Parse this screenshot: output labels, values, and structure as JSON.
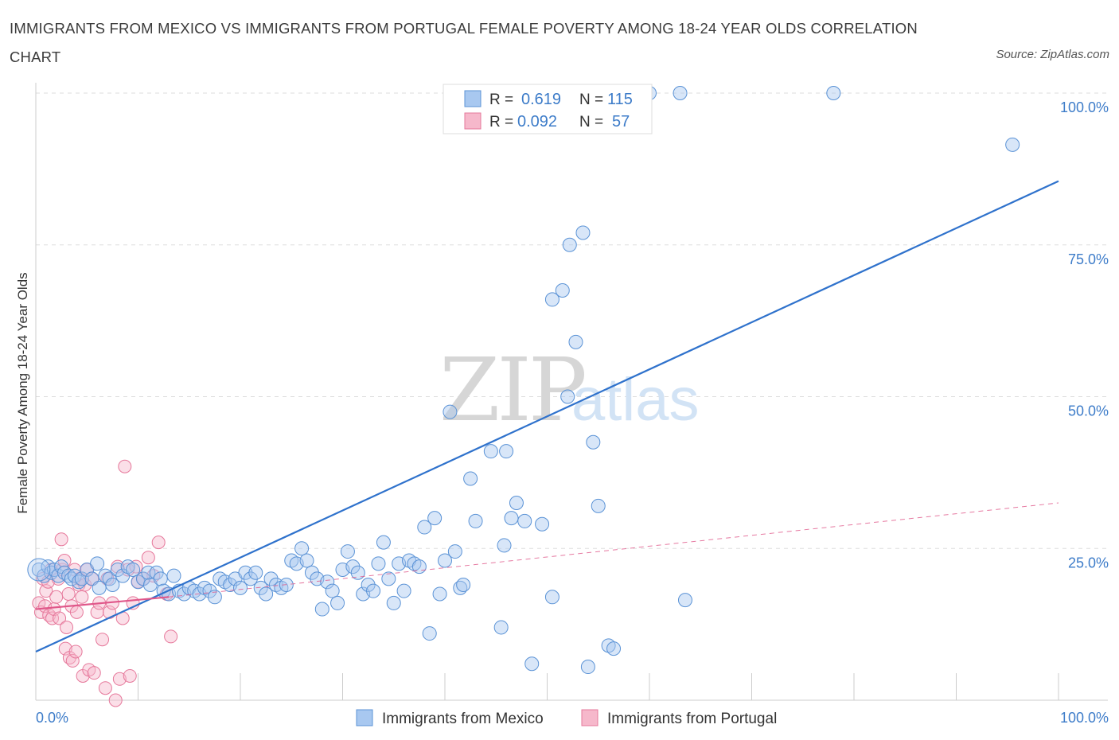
{
  "header": {
    "title": "IMMIGRANTS FROM MEXICO VS IMMIGRANTS FROM PORTUGAL FEMALE POVERTY AMONG 18-24 YEAR OLDS CORRELATION CHART",
    "source": "Source: ZipAtlas.com"
  },
  "watermark": {
    "zip": "ZIP",
    "atlas": "atlas"
  },
  "colors": {
    "mexico_fill": "#a8c8f0",
    "mexico_stroke": "#5b93d6",
    "mexico_line": "#2f72cc",
    "portugal_fill": "#f6b8cb",
    "portugal_stroke": "#e6789b",
    "portugal_line": "#e0578a",
    "tick_label": "#3d7cc9",
    "grid": "#dddddd"
  },
  "legend": {
    "rows": [
      {
        "r_label": "R =",
        "r_value": "0.619",
        "n_label": "N =",
        "n_value": "115"
      },
      {
        "r_label": "R =",
        "r_value": "0.092",
        "n_label": "N =",
        "n_value": "57"
      }
    ]
  },
  "chart_data": {
    "type": "scatter",
    "title": "IMMIGRANTS FROM MEXICO VS IMMIGRANTS FROM PORTUGAL FEMALE POVERTY AMONG 18-24 YEAR OLDS CORRELATION CHART",
    "xlabel": "",
    "ylabel": "Female Poverty Among 18-24 Year Olds",
    "xlim": [
      0,
      100
    ],
    "ylim": [
      0,
      100
    ],
    "x_tick_labels": [
      "0.0%",
      "100.0%"
    ],
    "y_tick_labels": [
      {
        "value": 25,
        "label": "25.0%"
      },
      {
        "value": 50,
        "label": "50.0%"
      },
      {
        "value": 75,
        "label": "75.0%"
      },
      {
        "value": 100,
        "label": "100.0%"
      }
    ],
    "grid": "horizontal dashed",
    "legend_position": "top-center",
    "series": [
      {
        "name": "Immigrants from Mexico",
        "r": 0.619,
        "n": 115,
        "trend": {
          "x": [
            0,
            100
          ],
          "y": [
            8,
            85.5
          ]
        },
        "points": [
          [
            0.3,
            21.5
          ],
          [
            0.8,
            20.5
          ],
          [
            1.2,
            22
          ],
          [
            1.5,
            21
          ],
          [
            1.8,
            21.5
          ],
          [
            2.2,
            20.5
          ],
          [
            2.5,
            22
          ],
          [
            2.8,
            21
          ],
          [
            3.2,
            20.5
          ],
          [
            3.5,
            20
          ],
          [
            3.8,
            20.5
          ],
          [
            4.2,
            19.5
          ],
          [
            4.5,
            20
          ],
          [
            5,
            21.5
          ],
          [
            5.5,
            20
          ],
          [
            6,
            22.5
          ],
          [
            6.2,
            18.5
          ],
          [
            6.8,
            20.5
          ],
          [
            7.2,
            20
          ],
          [
            7.5,
            19
          ],
          [
            8,
            21.5
          ],
          [
            8.5,
            20.5
          ],
          [
            9,
            22
          ],
          [
            9.5,
            21.5
          ],
          [
            10,
            19.5
          ],
          [
            10.5,
            20
          ],
          [
            11,
            21
          ],
          [
            11.2,
            19
          ],
          [
            11.8,
            21
          ],
          [
            12.2,
            20
          ],
          [
            12.5,
            18
          ],
          [
            13,
            17.5
          ],
          [
            13.5,
            20.5
          ],
          [
            14,
            18
          ],
          [
            14.5,
            17.5
          ],
          [
            15,
            18.5
          ],
          [
            15.5,
            18
          ],
          [
            16,
            17.5
          ],
          [
            16.5,
            18.5
          ],
          [
            17,
            18
          ],
          [
            17.5,
            17
          ],
          [
            18,
            20
          ],
          [
            18.5,
            19.5
          ],
          [
            19,
            19
          ],
          [
            19.5,
            20
          ],
          [
            20,
            18.5
          ],
          [
            20.5,
            21
          ],
          [
            21,
            20
          ],
          [
            21.5,
            21
          ],
          [
            22,
            18.5
          ],
          [
            22.5,
            17.5
          ],
          [
            23,
            20
          ],
          [
            23.5,
            19
          ],
          [
            24,
            18.5
          ],
          [
            24.5,
            19
          ],
          [
            25,
            23
          ],
          [
            25.5,
            22.5
          ],
          [
            26,
            25
          ],
          [
            26.5,
            23
          ],
          [
            27,
            21
          ],
          [
            27.5,
            20
          ],
          [
            28,
            15
          ],
          [
            28.5,
            19.5
          ],
          [
            29,
            18
          ],
          [
            29.5,
            16
          ],
          [
            30,
            21.5
          ],
          [
            30.5,
            24.5
          ],
          [
            31,
            22
          ],
          [
            31.5,
            21
          ],
          [
            32,
            17.5
          ],
          [
            32.5,
            19
          ],
          [
            33,
            18
          ],
          [
            33.5,
            22.5
          ],
          [
            34,
            26
          ],
          [
            34.5,
            20
          ],
          [
            35,
            16
          ],
          [
            35.5,
            22.5
          ],
          [
            36,
            18
          ],
          [
            36.5,
            23
          ],
          [
            37,
            22.5
          ],
          [
            37.5,
            22
          ],
          [
            38,
            28.5
          ],
          [
            38.5,
            11
          ],
          [
            39,
            30
          ],
          [
            39.5,
            17.5
          ],
          [
            40,
            23
          ],
          [
            40.5,
            47.5
          ],
          [
            41,
            24.5
          ],
          [
            41.5,
            18.5
          ],
          [
            41.8,
            19
          ],
          [
            42.5,
            36.5
          ],
          [
            43,
            29.5
          ],
          [
            44.5,
            41
          ],
          [
            45.5,
            12
          ],
          [
            45.8,
            25.5
          ],
          [
            46,
            41
          ],
          [
            46.5,
            30
          ],
          [
            47,
            32.5
          ],
          [
            47.8,
            29.5
          ],
          [
            48.5,
            6
          ],
          [
            49.5,
            29
          ],
          [
            50.5,
            17
          ],
          [
            50.5,
            66
          ],
          [
            51.5,
            67.5
          ],
          [
            52,
            50
          ],
          [
            52.2,
            75
          ],
          [
            52.8,
            59
          ],
          [
            53.5,
            77
          ],
          [
            54,
            5.5
          ],
          [
            54.5,
            42.5
          ],
          [
            55,
            32
          ],
          [
            56,
            9
          ],
          [
            56.5,
            8.5
          ],
          [
            63.5,
            16.5
          ],
          [
            95.5,
            91.5
          ]
        ],
        "top_points": [
          [
            53,
            100
          ],
          [
            55,
            100
          ],
          [
            60,
            100
          ],
          [
            63,
            100
          ],
          [
            78,
            100
          ]
        ]
      },
      {
        "name": "Immigrants from Portugal",
        "r": 0.092,
        "n": 57,
        "trend_solid": {
          "x": [
            0,
            13
          ],
          "y": [
            15,
            17
          ]
        },
        "trend_dashed": {
          "x": [
            13,
            100
          ],
          "y": [
            17,
            32.5
          ]
        },
        "points": [
          [
            0.3,
            16
          ],
          [
            0.5,
            14.5
          ],
          [
            0.7,
            20
          ],
          [
            0.9,
            15.5
          ],
          [
            1,
            18
          ],
          [
            1.2,
            19.5
          ],
          [
            1.3,
            14
          ],
          [
            1.5,
            21.5
          ],
          [
            1.6,
            13.5
          ],
          [
            1.8,
            15
          ],
          [
            2,
            17
          ],
          [
            2.2,
            20
          ],
          [
            2.3,
            13.5
          ],
          [
            2.5,
            26.5
          ],
          [
            2.6,
            21.5
          ],
          [
            2.8,
            23
          ],
          [
            2.9,
            8.5
          ],
          [
            3,
            12
          ],
          [
            3.2,
            17.5
          ],
          [
            3.3,
            7
          ],
          [
            3.5,
            15.5
          ],
          [
            3.6,
            6.5
          ],
          [
            3.8,
            21.5
          ],
          [
            3.9,
            8
          ],
          [
            4,
            14.5
          ],
          [
            4.2,
            19
          ],
          [
            4.3,
            20
          ],
          [
            4.5,
            17
          ],
          [
            4.6,
            4
          ],
          [
            4.8,
            19
          ],
          [
            5,
            21.5
          ],
          [
            5.2,
            5
          ],
          [
            5.5,
            20
          ],
          [
            5.7,
            4.5
          ],
          [
            6,
            14.5
          ],
          [
            6.2,
            16
          ],
          [
            6.5,
            10
          ],
          [
            6.8,
            2
          ],
          [
            7,
            20
          ],
          [
            7.2,
            14.5
          ],
          [
            7.5,
            16
          ],
          [
            7.8,
            0
          ],
          [
            8,
            22
          ],
          [
            8.2,
            3.5
          ],
          [
            8.5,
            13.5
          ],
          [
            8.7,
            38.5
          ],
          [
            9,
            21.5
          ],
          [
            9.2,
            4
          ],
          [
            9.5,
            16
          ],
          [
            9.8,
            22
          ],
          [
            10,
            19.5
          ],
          [
            10.5,
            20
          ],
          [
            11,
            23.5
          ],
          [
            11.5,
            20.5
          ],
          [
            12,
            26
          ],
          [
            12.8,
            17.5
          ],
          [
            13.2,
            10.5
          ]
        ]
      }
    ]
  },
  "bottom_legend": {
    "items": [
      {
        "label": "Immigrants from Mexico"
      },
      {
        "label": "Immigrants from Portugal"
      }
    ]
  }
}
